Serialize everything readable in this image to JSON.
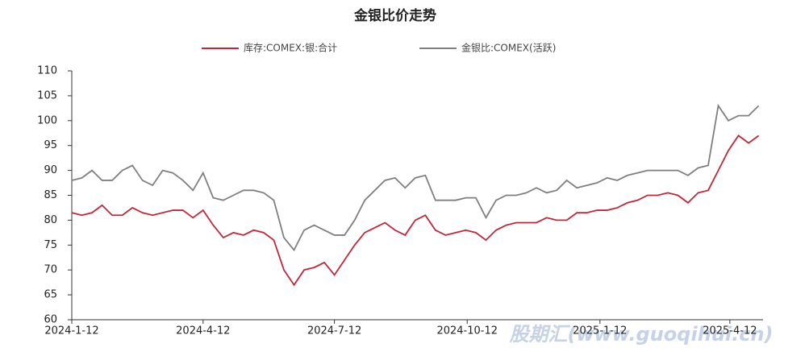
{
  "chart_data": {
    "type": "line",
    "title": "金银比价走势",
    "x": [
      "2024-1-12",
      "2024-1-19",
      "2024-1-26",
      "2024-2-2",
      "2024-2-9",
      "2024-2-16",
      "2024-2-23",
      "2024-3-1",
      "2024-3-8",
      "2024-3-15",
      "2024-3-22",
      "2024-3-29",
      "2024-4-5",
      "2024-4-12",
      "2024-4-19",
      "2024-4-26",
      "2024-5-3",
      "2024-5-10",
      "2024-5-17",
      "2024-5-24",
      "2024-5-31",
      "2024-6-7",
      "2024-6-14",
      "2024-6-21",
      "2024-6-28",
      "2024-7-5",
      "2024-7-12",
      "2024-7-19",
      "2024-7-26",
      "2024-8-2",
      "2024-8-9",
      "2024-8-16",
      "2024-8-23",
      "2024-8-30",
      "2024-9-6",
      "2024-9-13",
      "2024-9-20",
      "2024-9-27",
      "2024-10-4",
      "2024-10-11",
      "2024-10-18",
      "2024-10-25",
      "2024-11-1",
      "2024-11-8",
      "2024-11-15",
      "2024-11-22",
      "2024-11-29",
      "2024-12-6",
      "2024-12-13",
      "2024-12-20",
      "2024-12-27",
      "2025-1-3",
      "2025-1-10",
      "2025-1-17",
      "2025-1-24",
      "2025-1-31",
      "2025-2-7",
      "2025-2-14",
      "2025-2-21",
      "2025-2-28",
      "2025-3-7",
      "2025-3-14",
      "2025-3-21",
      "2025-3-28",
      "2025-4-4",
      "2025-4-11",
      "2025-4-18",
      "2025-4-25",
      "2025-5-2"
    ],
    "series": [
      {
        "name": "库存:COMEX:银:合计",
        "color": "#c0273a",
        "values": [
          81.5,
          81,
          81.5,
          83,
          81,
          81,
          82.5,
          81.5,
          81,
          81.5,
          82,
          82,
          80.5,
          82,
          79,
          76.5,
          77.5,
          77,
          78,
          77.5,
          76,
          70,
          67,
          70,
          70.5,
          71.5,
          69,
          72,
          75,
          77.5,
          78.5,
          79.5,
          78,
          77,
          80,
          81,
          78,
          77,
          77.5,
          78,
          77.5,
          76,
          78,
          79,
          79.5,
          79.5,
          79.5,
          80.5,
          80,
          80,
          81.5,
          81.5,
          82,
          82,
          82.5,
          83.5,
          84,
          85,
          85,
          85.5,
          85,
          83.5,
          85.5,
          86,
          90,
          94,
          97,
          95.5,
          97
        ]
      },
      {
        "name": "金银比:COMEX(活跃)",
        "color": "#7f7f7f",
        "values": [
          88,
          88.5,
          90,
          88,
          88,
          90,
          91,
          88,
          87,
          90,
          89.5,
          88,
          86,
          89.5,
          84.5,
          84,
          85,
          86,
          86,
          85.5,
          84,
          76.5,
          74,
          78,
          79,
          78,
          77,
          77,
          80,
          84,
          86,
          88,
          88.5,
          86.5,
          88.5,
          89,
          84,
          84,
          84,
          84.5,
          84.5,
          80.5,
          84,
          85,
          85,
          85.5,
          86.5,
          85.5,
          86,
          88,
          86.5,
          87,
          87.5,
          88.5,
          88,
          89,
          89.5,
          90,
          90,
          90,
          90,
          89,
          90.5,
          91,
          103,
          100,
          101,
          101,
          103
        ]
      }
    ],
    "xlim": [
      "2024-1-12",
      "2025-5-5"
    ],
    "xticks": [
      "2024-1-12",
      "2024-4-12",
      "2024-7-12",
      "2024-10-12",
      "2025-1-12",
      "2025-4-12"
    ],
    "ylim": [
      60,
      110
    ],
    "yticks": [
      60,
      65,
      70,
      75,
      80,
      85,
      90,
      95,
      100,
      105,
      110
    ],
    "legend": "top",
    "watermark": "股期汇(www.guoqihui.cn)"
  }
}
